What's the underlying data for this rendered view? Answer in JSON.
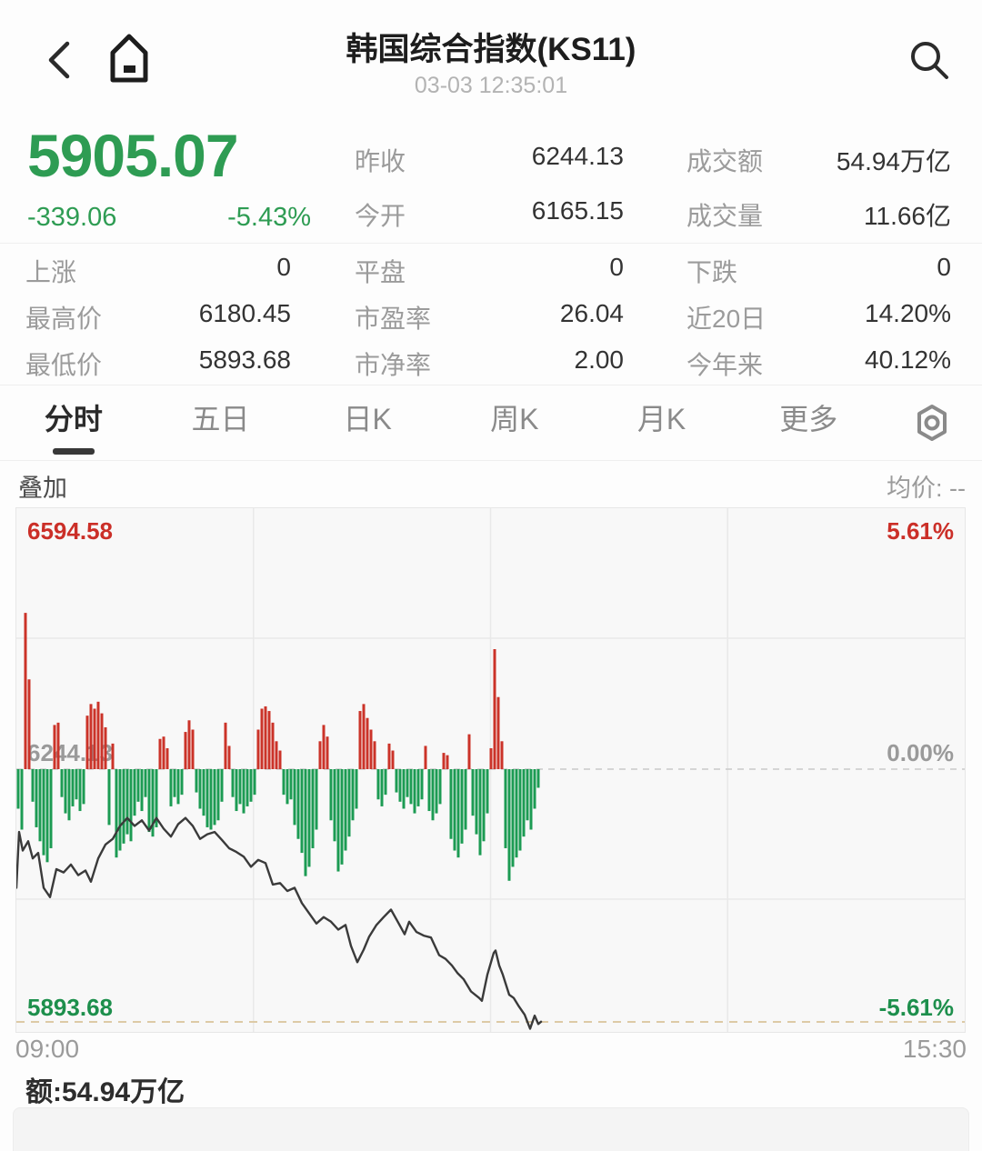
{
  "header": {
    "title": "韩国综合指数(KS11)",
    "timestamp": "03-03 12:35:01"
  },
  "quote": {
    "price": "5905.07",
    "change": "-339.06",
    "change_pct": "-5.43%"
  },
  "summary": [
    {
      "label": "昨收",
      "value": "6244.13"
    },
    {
      "label": "成交额",
      "value": "54.94万亿"
    },
    {
      "label": "今开",
      "value": "6165.15"
    },
    {
      "label": "成交量",
      "value": "11.66亿"
    }
  ],
  "stats": [
    {
      "label": "上涨",
      "value": "0"
    },
    {
      "label": "平盘",
      "value": "0"
    },
    {
      "label": "下跌",
      "value": "0"
    },
    {
      "label": "最高价",
      "value": "6180.45"
    },
    {
      "label": "市盈率",
      "value": "26.04"
    },
    {
      "label": "近20日",
      "value": "14.20%"
    },
    {
      "label": "最低价",
      "value": "5893.68"
    },
    {
      "label": "市净率",
      "value": "2.00"
    },
    {
      "label": "今年来",
      "value": "40.12%"
    }
  ],
  "tabs": [
    {
      "label": "分时"
    },
    {
      "label": "五日"
    },
    {
      "label": "日K"
    },
    {
      "label": "周K"
    },
    {
      "label": "月K"
    },
    {
      "label": "更多"
    }
  ],
  "overlay": {
    "label": "叠加",
    "avg_text": "均价: --"
  },
  "chart_labels": {
    "top_price": "6594.58",
    "top_pct": "5.61%",
    "mid_price": "6244.13",
    "mid_pct": "0.00%",
    "low_price": "5893.68",
    "low_pct": "-5.61%"
  },
  "x_axis": {
    "start": "09:00",
    "end": "15:30"
  },
  "footer": {
    "amount": "额:54.94万亿"
  },
  "colors": {
    "up_red": "#cb3329",
    "down_green": "#1c9b53",
    "quote_green": "#2e9c53",
    "line_dark": "#3a3a3a",
    "grid": "#e9e9e9",
    "mid_dash": "#c9c9c9",
    "low_dash": "#ddcaa6"
  },
  "chart_data": {
    "type": "line",
    "title": "分时 (minute chart with change-histogram)",
    "x_range": [
      "09:00",
      "15:30"
    ],
    "session_minutes": 390,
    "last_time": "12:35",
    "y_axis_price": {
      "high": 6594.58,
      "prev_close": 6244.13,
      "low": 5893.68
    },
    "y_axis_pct": {
      "high": 5.61,
      "mid": 0.0,
      "low": -5.61
    },
    "grid": "4x4 quarters, dashed zero line, dashed low line",
    "price_line_pct": [
      [
        0,
        -2.55
      ],
      [
        3,
        -1.35
      ],
      [
        7,
        -1.75
      ],
      [
        13,
        -1.55
      ],
      [
        18,
        -1.92
      ],
      [
        24,
        -1.8
      ],
      [
        30,
        -2.55
      ],
      [
        37,
        -2.75
      ],
      [
        44,
        -2.15
      ],
      [
        52,
        -2.22
      ],
      [
        60,
        -2.05
      ],
      [
        68,
        -2.28
      ],
      [
        76,
        -2.18
      ],
      [
        82,
        -2.42
      ],
      [
        90,
        -1.92
      ],
      [
        98,
        -1.62
      ],
      [
        106,
        -1.5
      ],
      [
        114,
        -1.22
      ],
      [
        122,
        -1.05
      ],
      [
        130,
        -1.22
      ],
      [
        138,
        -1.1
      ],
      [
        146,
        -1.32
      ],
      [
        154,
        -1.05
      ],
      [
        162,
        -1.28
      ],
      [
        170,
        -1.45
      ],
      [
        178,
        -1.18
      ],
      [
        186,
        -1.05
      ],
      [
        194,
        -1.22
      ],
      [
        202,
        -1.5
      ],
      [
        210,
        -1.4
      ],
      [
        218,
        -1.35
      ],
      [
        226,
        -1.52
      ],
      [
        234,
        -1.7
      ],
      [
        242,
        -1.78
      ],
      [
        250,
        -1.88
      ],
      [
        258,
        -2.1
      ],
      [
        266,
        -1.95
      ],
      [
        274,
        -2.02
      ],
      [
        282,
        -2.48
      ],
      [
        290,
        -2.45
      ],
      [
        298,
        -2.62
      ],
      [
        306,
        -2.55
      ],
      [
        314,
        -2.88
      ],
      [
        322,
        -3.1
      ],
      [
        330,
        -3.32
      ],
      [
        338,
        -3.18
      ],
      [
        346,
        -3.28
      ],
      [
        354,
        -3.45
      ],
      [
        362,
        -3.35
      ],
      [
        368,
        -3.8
      ],
      [
        375,
        -4.15
      ],
      [
        382,
        -3.88
      ],
      [
        388,
        -3.6
      ],
      [
        396,
        -3.35
      ],
      [
        404,
        -3.18
      ],
      [
        412,
        -3.02
      ],
      [
        420,
        -3.3
      ],
      [
        427,
        -3.55
      ],
      [
        432,
        -3.28
      ],
      [
        440,
        -3.5
      ],
      [
        448,
        -3.58
      ],
      [
        456,
        -3.62
      ],
      [
        465,
        -4.0
      ],
      [
        472,
        -4.08
      ],
      [
        479,
        -4.22
      ],
      [
        485,
        -4.38
      ],
      [
        492,
        -4.52
      ],
      [
        500,
        -4.78
      ],
      [
        509,
        -4.92
      ],
      [
        512,
        -4.98
      ],
      [
        518,
        -4.42
      ],
      [
        525,
        -3.95
      ],
      [
        527,
        -3.9
      ],
      [
        531,
        -4.22
      ],
      [
        535,
        -4.42
      ],
      [
        542,
        -4.85
      ],
      [
        547,
        -4.92
      ],
      [
        552,
        -5.08
      ],
      [
        559,
        -5.28
      ],
      [
        565,
        -5.58
      ],
      [
        570,
        -5.3
      ],
      [
        574,
        -5.48
      ],
      [
        577,
        -5.43
      ]
    ],
    "volume_bars_pct": [
      -0.85,
      -1.3,
      3.36,
      1.93,
      -0.7,
      -1.25,
      -1.55,
      -1.85,
      -2.0,
      -1.7,
      0.95,
      1.0,
      -0.6,
      -0.95,
      -1.1,
      -0.8,
      -0.65,
      -0.9,
      -0.75,
      1.15,
      1.4,
      1.3,
      1.45,
      1.2,
      0.9,
      -1.2,
      0.55,
      -1.9,
      -1.75,
      -1.6,
      -1.4,
      -1.55,
      -1.0,
      -0.7,
      -0.9,
      -0.6,
      -1.35,
      -1.45,
      -1.25,
      0.65,
      0.7,
      0.45,
      -0.8,
      -0.6,
      -0.75,
      -0.55,
      0.8,
      1.05,
      0.85,
      -0.5,
      -0.85,
      -1.0,
      -1.25,
      -1.3,
      -1.2,
      -1.1,
      -0.7,
      1.0,
      0.5,
      -0.6,
      -0.9,
      -0.75,
      -0.95,
      -0.8,
      -0.7,
      -0.55,
      0.85,
      1.3,
      1.35,
      1.25,
      1.0,
      0.6,
      0.4,
      -0.55,
      -0.75,
      -0.65,
      -1.2,
      -1.5,
      -1.8,
      -2.3,
      -2.1,
      -1.7,
      -1.3,
      0.6,
      0.95,
      0.7,
      -1.1,
      -1.55,
      -2.2,
      -2.05,
      -1.75,
      -1.45,
      -1.1,
      -0.85,
      1.25,
      1.4,
      1.1,
      0.85,
      0.6,
      -0.65,
      -0.8,
      -0.55,
      0.55,
      0.4,
      -0.5,
      -0.7,
      -0.85,
      -0.6,
      -0.75,
      -0.95,
      -0.8,
      -0.65,
      0.5,
      -0.9,
      -1.1,
      -0.95,
      -0.75,
      0.35,
      0.3,
      -1.5,
      -1.75,
      -1.9,
      -1.6,
      -1.3,
      0.75,
      -1.0,
      -1.4,
      -1.85,
      -1.55,
      -0.95,
      0.45,
      2.58,
      1.55,
      0.6,
      -1.7,
      -2.4,
      -2.1,
      -1.9,
      -1.75,
      -1.45,
      -1.1,
      -1.3,
      -0.85,
      -0.4
    ]
  }
}
